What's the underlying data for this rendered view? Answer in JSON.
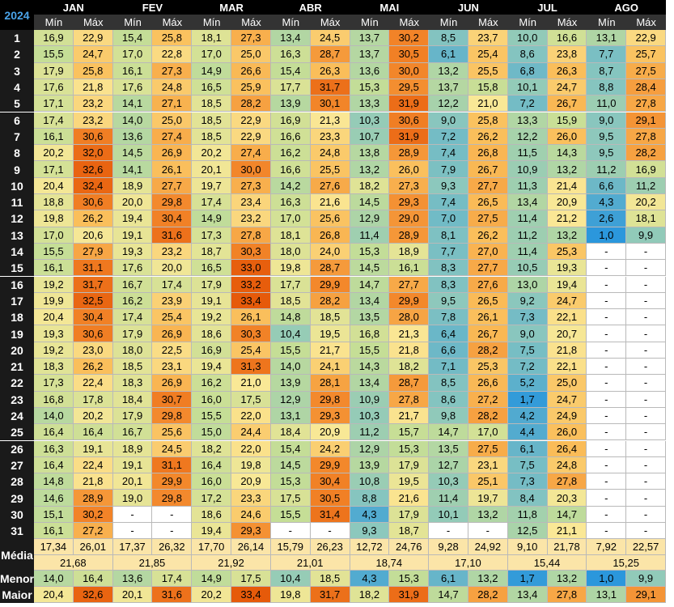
{
  "table": {
    "year": "2024",
    "months": [
      "JAN",
      "FEV",
      "MAR",
      "ABR",
      "MAI",
      "JUN",
      "JUL",
      "AGO"
    ],
    "sub_min": "Mín",
    "sub_max": "Máx",
    "day_labels": [
      "1",
      "2",
      "3",
      "4",
      "5",
      "6",
      "7",
      "8",
      "9",
      "10",
      "11",
      "12",
      "13",
      "14",
      "15",
      "16",
      "17",
      "18",
      "19",
      "20",
      "21",
      "22",
      "23",
      "24",
      "25",
      "26",
      "27",
      "28",
      "29",
      "30",
      "31"
    ],
    "rows": [
      [
        "16,9",
        "22,9",
        "15,4",
        "25,8",
        "18,1",
        "27,3",
        "13,4",
        "24,5",
        "13,7",
        "30,2",
        "8,5",
        "23,7",
        "10,0",
        "16,6",
        "13,1",
        "22,9"
      ],
      [
        "15,5",
        "24,7",
        "17,0",
        "22,8",
        "17,0",
        "25,0",
        "16,3",
        "28,7",
        "13,7",
        "30,5",
        "6,1",
        "25,4",
        "8,6",
        "23,8",
        "7,7",
        "25,7"
      ],
      [
        "17,9",
        "25,8",
        "16,1",
        "27,3",
        "14,9",
        "26,6",
        "15,4",
        "26,3",
        "13,6",
        "30,0",
        "13,2",
        "25,5",
        "6,8",
        "26,3",
        "8,7",
        "27,5"
      ],
      [
        "17,6",
        "21,8",
        "17,6",
        "24,8",
        "16,5",
        "25,9",
        "17,7",
        "31,7",
        "15,3",
        "29,5",
        "13,7",
        "15,8",
        "10,1",
        "24,7",
        "8,8",
        "28,4"
      ],
      [
        "17,1",
        "23,2",
        "14,1",
        "27,1",
        "18,5",
        "28,2",
        "13,9",
        "30,1",
        "13,3",
        "31,9",
        "12,2",
        "21,0",
        "7,2",
        "26,7",
        "11,0",
        "27,8"
      ],
      [
        "17,4",
        "23,2",
        "14,0",
        "25,0",
        "18,5",
        "22,9",
        "16,9",
        "21,3",
        "10,3",
        "30,6",
        "9,0",
        "25,8",
        "13,3",
        "15,9",
        "9,0",
        "29,1"
      ],
      [
        "16,1",
        "30,6",
        "13,6",
        "27,4",
        "18,5",
        "22,9",
        "16,6",
        "23,3",
        "10,7",
        "31,9",
        "7,2",
        "26,2",
        "12,2",
        "26,0",
        "9,5",
        "27,8"
      ],
      [
        "20,2",
        "32,0",
        "14,5",
        "26,9",
        "20,2",
        "27,4",
        "16,2",
        "24,8",
        "13,8",
        "28,9",
        "7,4",
        "26,8",
        "11,5",
        "14,3",
        "9,5",
        "28,2"
      ],
      [
        "17,1",
        "32,6",
        "14,1",
        "26,1",
        "20,1",
        "30,0",
        "16,6",
        "25,5",
        "13,2",
        "26,0",
        "7,9",
        "26,7",
        "10,9",
        "13,2",
        "11,2",
        "16,9"
      ],
      [
        "20,4",
        "32,4",
        "18,9",
        "27,7",
        "19,7",
        "27,3",
        "14,2",
        "27,6",
        "18,2",
        "27,3",
        "9,3",
        "27,7",
        "11,3",
        "21,4",
        "6,6",
        "11,2"
      ],
      [
        "18,8",
        "30,6",
        "20,0",
        "29,8",
        "17,4",
        "23,4",
        "16,3",
        "21,6",
        "14,5",
        "29,3",
        "7,4",
        "26,5",
        "13,4",
        "20,9",
        "4,3",
        "20,2"
      ],
      [
        "19,8",
        "26,2",
        "19,4",
        "30,4",
        "14,9",
        "23,2",
        "17,0",
        "25,6",
        "12,9",
        "29,0",
        "7,0",
        "27,5",
        "11,4",
        "21,2",
        "2,6",
        "18,1"
      ],
      [
        "17,0",
        "20,6",
        "19,1",
        "31,6",
        "17,3",
        "27,8",
        "18,1",
        "26,8",
        "11,4",
        "28,9",
        "8,1",
        "26,2",
        "11,2",
        "13,2",
        "1,0",
        "9,9"
      ],
      [
        "15,5",
        "27,9",
        "19,3",
        "23,2",
        "18,7",
        "30,3",
        "18,0",
        "24,0",
        "15,3",
        "18,9",
        "7,7",
        "27,0",
        "11,4",
        "25,3",
        "-",
        "-"
      ],
      [
        "16,1",
        "31,1",
        "17,6",
        "20,0",
        "16,5",
        "33,0",
        "19,8",
        "28,7",
        "14,5",
        "16,1",
        "8,3",
        "27,7",
        "10,5",
        "19,3",
        "-",
        "-"
      ],
      [
        "19,2",
        "31,7",
        "16,7",
        "17,4",
        "17,9",
        "33,2",
        "17,7",
        "29,9",
        "14,7",
        "27,7",
        "8,3",
        "27,6",
        "13,0",
        "19,4",
        "-",
        "-"
      ],
      [
        "19,9",
        "32,5",
        "16,2",
        "23,9",
        "19,1",
        "33,4",
        "18,5",
        "28,2",
        "13,4",
        "29,9",
        "9,5",
        "26,5",
        "9,2",
        "24,7",
        "-",
        "-"
      ],
      [
        "20,4",
        "30,4",
        "17,4",
        "25,4",
        "19,2",
        "26,1",
        "14,8",
        "18,5",
        "13,5",
        "28,0",
        "7,8",
        "26,1",
        "7,3",
        "22,1",
        "-",
        "-"
      ],
      [
        "19,3",
        "30,6",
        "17,9",
        "26,9",
        "18,6",
        "30,3",
        "10,4",
        "19,5",
        "16,8",
        "21,3",
        "6,4",
        "26,7",
        "9,0",
        "20,7",
        "-",
        "-"
      ],
      [
        "19,2",
        "23,0",
        "18,0",
        "22,5",
        "16,9",
        "25,4",
        "15,5",
        "21,7",
        "15,5",
        "21,8",
        "6,6",
        "28,2",
        "7,5",
        "21,8",
        "-",
        "-"
      ],
      [
        "18,3",
        "26,2",
        "18,5",
        "23,1",
        "19,4",
        "31,3",
        "14,0",
        "24,1",
        "14,3",
        "18,2",
        "7,1",
        "25,3",
        "7,2",
        "22,1",
        "-",
        "-"
      ],
      [
        "17,3",
        "22,4",
        "18,3",
        "26,9",
        "16,2",
        "21,0",
        "13,9",
        "28,1",
        "13,4",
        "28,7",
        "8,5",
        "26,6",
        "5,2",
        "25,0",
        "-",
        "-"
      ],
      [
        "16,8",
        "17,8",
        "18,4",
        "30,7",
        "16,0",
        "17,5",
        "12,9",
        "29,8",
        "10,9",
        "27,8",
        "8,6",
        "27,2",
        "1,7",
        "24,7",
        "-",
        "-"
      ],
      [
        "14,0",
        "20,2",
        "17,9",
        "29,8",
        "15,5",
        "22,0",
        "13,1",
        "29,3",
        "10,3",
        "21,7",
        "9,8",
        "28,2",
        "4,2",
        "24,9",
        "-",
        "-"
      ],
      [
        "16,4",
        "16,4",
        "16,7",
        "25,6",
        "15,0",
        "24,4",
        "18,4",
        "20,9",
        "11,2",
        "15,7",
        "14,7",
        "17,0",
        "4,4",
        "26,0",
        "-",
        "-"
      ],
      [
        "16,3",
        "19,1",
        "18,9",
        "24,5",
        "18,2",
        "22,0",
        "15,4",
        "24,2",
        "12,9",
        "15,3",
        "13,5",
        "27,5",
        "6,1",
        "26,4",
        "-",
        "-"
      ],
      [
        "16,4",
        "22,4",
        "19,1",
        "31,1",
        "16,4",
        "19,8",
        "14,5",
        "29,9",
        "13,9",
        "17,9",
        "12,7",
        "23,1",
        "7,5",
        "24,8",
        "-",
        "-"
      ],
      [
        "14,8",
        "21,8",
        "20,1",
        "29,9",
        "16,0",
        "20,9",
        "15,3",
        "30,4",
        "10,8",
        "19,5",
        "10,3",
        "25,1",
        "7,3",
        "27,8",
        "-",
        "-"
      ],
      [
        "14,6",
        "28,9",
        "19,0",
        "29,8",
        "17,2",
        "23,3",
        "17,5",
        "30,5",
        "8,8",
        "21,6",
        "11,4",
        "19,7",
        "8,4",
        "20,3",
        "-",
        "-"
      ],
      [
        "15,1",
        "30,2",
        "-",
        "-",
        "18,6",
        "24,6",
        "15,5",
        "31,4",
        "4,3",
        "17,9",
        "10,1",
        "13,2",
        "11,8",
        "14,7",
        "-",
        "-"
      ],
      [
        "16,1",
        "27,2",
        "-",
        "-",
        "19,4",
        "29,3",
        "-",
        "-",
        "9,3",
        "18,7",
        "-",
        "-",
        "12,5",
        "21,1",
        "-",
        "-"
      ]
    ],
    "media_label": "Média",
    "media": [
      "17,34",
      "26,01",
      "17,37",
      "26,32",
      "17,70",
      "26,14",
      "15,79",
      "26,23",
      "12,72",
      "24,76",
      "9,28",
      "24,92",
      "9,10",
      "21,78",
      "7,92",
      "22,57"
    ],
    "media_avg": [
      "21,68",
      "21,85",
      "21,92",
      "21,01",
      "18,74",
      "17,10",
      "15,44",
      "15,25"
    ],
    "menor_label": "Menor",
    "menor": [
      "14,0",
      "16,4",
      "13,6",
      "17,4",
      "14,9",
      "17,5",
      "10,4",
      "18,5",
      "4,3",
      "15,3",
      "6,1",
      "13,2",
      "1,7",
      "13,2",
      "1,0",
      "9,9"
    ],
    "maior_label": "Maior",
    "maior": [
      "20,4",
      "32,6",
      "20,1",
      "31,6",
      "20,2",
      "33,4",
      "19,8",
      "31,7",
      "18,2",
      "31,9",
      "14,7",
      "28,2",
      "13,4",
      "27,8",
      "13,1",
      "29,1"
    ]
  }
}
